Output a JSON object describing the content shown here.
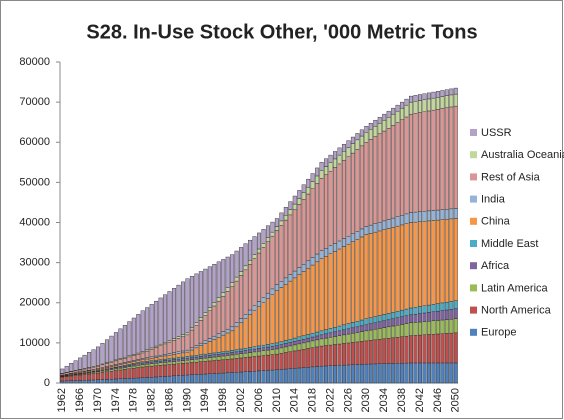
{
  "chart_data": {
    "type": "stacked-bar",
    "title": "S28. In-Use Stock Other, '000 Metric Tons",
    "categories": [
      "1962",
      null,
      null,
      null,
      "1966",
      null,
      null,
      null,
      "1970",
      null,
      null,
      null,
      "1974",
      null,
      null,
      null,
      "1978",
      null,
      null,
      null,
      "1982",
      null,
      null,
      null,
      "1986",
      null,
      null,
      null,
      "1990",
      null,
      null,
      null,
      "1994",
      null,
      null,
      null,
      "1998",
      null,
      null,
      null,
      "2002",
      null,
      null,
      null,
      "2006",
      null,
      null,
      null,
      "2010",
      null,
      null,
      null,
      "2014",
      null,
      null,
      null,
      "2018",
      null,
      null,
      null,
      "2022",
      null,
      null,
      null,
      "2026",
      null,
      null,
      null,
      "2030",
      null,
      null,
      null,
      "2034",
      null,
      null,
      null,
      "2038",
      null,
      null,
      null,
      "2042",
      null,
      null,
      null,
      "2046",
      null,
      null,
      null,
      "2050"
    ],
    "ylim": [
      0,
      80000
    ],
    "yticks": [
      0,
      10000,
      20000,
      30000,
      40000,
      50000,
      60000,
      70000,
      80000
    ],
    "grid": false,
    "legend": "right",
    "series": [
      {
        "name": "Europe",
        "color": "#4f81bd",
        "values": [
          500,
          540,
          580,
          610,
          650,
          690,
          730,
          760,
          800,
          850,
          900,
          950,
          1000,
          1050,
          1100,
          1150,
          1200,
          1250,
          1300,
          1370,
          1440,
          1510,
          1580,
          1650,
          1720,
          1790,
          1860,
          1930,
          2000,
          2060,
          2120,
          2180,
          2240,
          2300,
          2360,
          2420,
          2480,
          2540,
          2600,
          2670,
          2740,
          2810,
          2880,
          2950,
          3020,
          3090,
          3160,
          3230,
          3300,
          3390,
          3480,
          3570,
          3660,
          3750,
          3840,
          3930,
          4020,
          4110,
          4200,
          4250,
          4300,
          4350,
          4400,
          4450,
          4500,
          4550,
          4600,
          4650,
          4700,
          4730,
          4760,
          4790,
          4820,
          4850,
          4880,
          4910,
          4940,
          4970,
          5000,
          5000,
          5000,
          5000,
          5000,
          5000,
          5000,
          5000,
          5000,
          5000,
          5000
        ]
      },
      {
        "name": "North America",
        "color": "#c0504d",
        "values": [
          1000,
          1090,
          1180,
          1260,
          1350,
          1440,
          1520,
          1610,
          1700,
          1800,
          1900,
          2000,
          2100,
          2200,
          2300,
          2400,
          2500,
          2600,
          2700,
          2730,
          2760,
          2790,
          2820,
          2850,
          2880,
          2910,
          2940,
          2970,
          3000,
          3040,
          3080,
          3120,
          3160,
          3200,
          3240,
          3280,
          3320,
          3360,
          3400,
          3450,
          3500,
          3550,
          3600,
          3650,
          3700,
          3750,
          3800,
          3850,
          3900,
          4010,
          4120,
          4230,
          4340,
          4450,
          4560,
          4670,
          4780,
          4890,
          5000,
          5080,
          5160,
          5240,
          5320,
          5400,
          5480,
          5560,
          5640,
          5720,
          5800,
          5900,
          6000,
          6100,
          6200,
          6300,
          6400,
          6500,
          6600,
          6700,
          6800,
          6870,
          6940,
          7010,
          7080,
          7150,
          7220,
          7290,
          7360,
          7430,
          7500
        ]
      },
      {
        "name": "Latin America",
        "color": "#9bbb59",
        "values": [
          100,
          130,
          150,
          180,
          200,
          230,
          250,
          280,
          300,
          330,
          360,
          390,
          420,
          450,
          480,
          510,
          540,
          570,
          600,
          610,
          620,
          630,
          640,
          650,
          660,
          670,
          680,
          690,
          700,
          730,
          760,
          790,
          820,
          850,
          880,
          910,
          940,
          970,
          1000,
          1030,
          1060,
          1090,
          1120,
          1150,
          1180,
          1210,
          1240,
          1270,
          1300,
          1350,
          1400,
          1450,
          1500,
          1550,
          1600,
          1650,
          1700,
          1750,
          1800,
          1870,
          1940,
          2010,
          2080,
          2150,
          2220,
          2290,
          2360,
          2430,
          2500,
          2570,
          2640,
          2710,
          2780,
          2850,
          2920,
          2990,
          3060,
          3130,
          3200,
          3230,
          3260,
          3290,
          3320,
          3350,
          3380,
          3410,
          3440,
          3470,
          3500
        ]
      },
      {
        "name": "Africa",
        "color": "#8064a2",
        "values": [
          100,
          110,
          130,
          140,
          150,
          160,
          180,
          190,
          200,
          220,
          240,
          260,
          280,
          300,
          320,
          340,
          360,
          380,
          400,
          410,
          420,
          430,
          440,
          450,
          460,
          470,
          480,
          490,
          500,
          510,
          520,
          530,
          540,
          550,
          560,
          570,
          580,
          590,
          600,
          620,
          640,
          660,
          680,
          700,
          720,
          740,
          760,
          780,
          800,
          820,
          840,
          860,
          880,
          900,
          920,
          940,
          960,
          980,
          1000,
          1050,
          1100,
          1150,
          1200,
          1250,
          1300,
          1350,
          1400,
          1450,
          1500,
          1550,
          1600,
          1650,
          1700,
          1750,
          1800,
          1850,
          1900,
          1950,
          2000,
          2050,
          2100,
          2150,
          2200,
          2250,
          2300,
          2350,
          2400,
          2450,
          2500
        ]
      },
      {
        "name": "Middle East",
        "color": "#4bacc6",
        "values": [
          50,
          60,
          60,
          70,
          80,
          80,
          90,
          90,
          100,
          120,
          140,
          160,
          180,
          200,
          220,
          240,
          260,
          280,
          300,
          310,
          320,
          330,
          340,
          350,
          360,
          370,
          380,
          390,
          400,
          410,
          420,
          430,
          440,
          450,
          460,
          470,
          480,
          490,
          500,
          520,
          540,
          560,
          580,
          600,
          620,
          640,
          660,
          680,
          700,
          730,
          760,
          790,
          820,
          850,
          880,
          910,
          940,
          970,
          1000,
          1050,
          1100,
          1150,
          1200,
          1250,
          1300,
          1350,
          1400,
          1450,
          1500,
          1520,
          1540,
          1560,
          1580,
          1600,
          1620,
          1640,
          1660,
          1680,
          1700,
          1730,
          1760,
          1790,
          1820,
          1850,
          1880,
          1910,
          1940,
          1970,
          2000
        ]
      },
      {
        "name": "China",
        "color": "#f79646",
        "values": [
          150,
          170,
          190,
          210,
          230,
          240,
          260,
          280,
          300,
          320,
          340,
          360,
          380,
          400,
          420,
          440,
          460,
          480,
          500,
          560,
          620,
          680,
          740,
          800,
          860,
          920,
          980,
          1040,
          1100,
          1480,
          1860,
          2240,
          2620,
          3000,
          3380,
          3760,
          4140,
          4520,
          4900,
          5710,
          6520,
          7330,
          8140,
          8950,
          9760,
          10570,
          11380,
          12190,
          13000,
          13500,
          14000,
          14500,
          15000,
          15500,
          16000,
          16500,
          17000,
          17500,
          18000,
          18300,
          18600,
          18900,
          19200,
          19500,
          19800,
          20100,
          20400,
          20700,
          21000,
          21030,
          21060,
          21090,
          21120,
          21150,
          21180,
          21210,
          21240,
          21270,
          21300,
          21220,
          21140,
          21060,
          20980,
          20900,
          20820,
          20740,
          20660,
          20580,
          20500
        ]
      },
      {
        "name": "India",
        "color": "#95b3d7",
        "values": [
          100,
          110,
          130,
          140,
          150,
          160,
          180,
          190,
          200,
          210,
          220,
          230,
          240,
          250,
          260,
          270,
          280,
          290,
          300,
          320,
          340,
          360,
          380,
          400,
          420,
          440,
          460,
          480,
          500,
          550,
          600,
          650,
          700,
          750,
          800,
          850,
          900,
          950,
          1000,
          1050,
          1100,
          1150,
          1200,
          1250,
          1300,
          1350,
          1400,
          1450,
          1500,
          1550,
          1600,
          1650,
          1700,
          1750,
          1800,
          1850,
          1900,
          1950,
          2000,
          2000,
          2000,
          2000,
          2000,
          2000,
          2000,
          2000,
          2000,
          2000,
          2000,
          2050,
          2100,
          2150,
          2200,
          2250,
          2300,
          2350,
          2400,
          2450,
          2500,
          2500,
          2500,
          2500,
          2500,
          2500,
          2500,
          2500,
          2500,
          2500,
          2500
        ]
      },
      {
        "name": "Rest of Asia",
        "color": "#d99694",
        "values": [
          300,
          340,
          380,
          410,
          450,
          490,
          530,
          560,
          600,
          680,
          760,
          840,
          920,
          1000,
          1080,
          1160,
          1240,
          1320,
          1400,
          1640,
          1880,
          2120,
          2360,
          2600,
          2840,
          3080,
          3320,
          3560,
          3800,
          4420,
          5040,
          5660,
          6280,
          6900,
          7520,
          8140,
          8760,
          9380,
          10000,
          10350,
          10700,
          11050,
          11400,
          11750,
          12100,
          12450,
          12800,
          13150,
          13500,
          13950,
          14400,
          14850,
          15300,
          15750,
          16200,
          16650,
          17100,
          17550,
          18000,
          18300,
          18600,
          18900,
          19200,
          19500,
          19800,
          20100,
          20400,
          20700,
          21000,
          21350,
          21700,
          22050,
          22400,
          22750,
          23100,
          23450,
          23800,
          24150,
          24500,
          24600,
          24700,
          24800,
          24900,
          25000,
          25100,
          25200,
          25300,
          25400,
          25500
        ]
      },
      {
        "name": "Australia Oceania",
        "color": "#c3d69b",
        "values": [
          100,
          110,
          130,
          140,
          150,
          160,
          180,
          190,
          200,
          210,
          220,
          230,
          240,
          250,
          260,
          270,
          280,
          290,
          300,
          320,
          340,
          360,
          380,
          400,
          420,
          440,
          460,
          480,
          500,
          550,
          600,
          650,
          700,
          750,
          800,
          850,
          900,
          950,
          1000,
          1000,
          1000,
          1000,
          1000,
          1000,
          1000,
          1000,
          1000,
          1000,
          1000,
          1100,
          1200,
          1300,
          1400,
          1500,
          1600,
          1700,
          1800,
          1900,
          2000,
          2050,
          2100,
          2150,
          2200,
          2250,
          2300,
          2350,
          2400,
          2450,
          2500,
          2550,
          2600,
          2650,
          2700,
          2750,
          2800,
          2850,
          2900,
          2950,
          3000,
          3000,
          3000,
          3000,
          3000,
          3000,
          3000,
          3000,
          3000,
          3000,
          3000
        ]
      },
      {
        "name": "USSR",
        "color": "#b3a2c7",
        "values": [
          1100,
          1540,
          1980,
          2410,
          2850,
          3290,
          3730,
          4160,
          4600,
          5160,
          5720,
          6280,
          6840,
          7400,
          7960,
          8520,
          9080,
          9640,
          10200,
          10530,
          10860,
          11190,
          11520,
          11850,
          12180,
          12510,
          12840,
          13170,
          13500,
          12850,
          12200,
          11550,
          10900,
          10250,
          9600,
          8950,
          8300,
          7650,
          7000,
          6500,
          6000,
          5500,
          5000,
          4500,
          4000,
          3500,
          3000,
          2500,
          2000,
          2000,
          2000,
          2000,
          2000,
          2000,
          2000,
          2000,
          2000,
          2000,
          2000,
          1950,
          1900,
          1850,
          1800,
          1750,
          1700,
          1650,
          1600,
          1550,
          1500,
          1500,
          1500,
          1500,
          1500,
          1500,
          1500,
          1500,
          1500,
          1500,
          1500,
          1500,
          1500,
          1500,
          1500,
          1500,
          1500,
          1500,
          1500,
          1500,
          1500
        ]
      }
    ]
  }
}
